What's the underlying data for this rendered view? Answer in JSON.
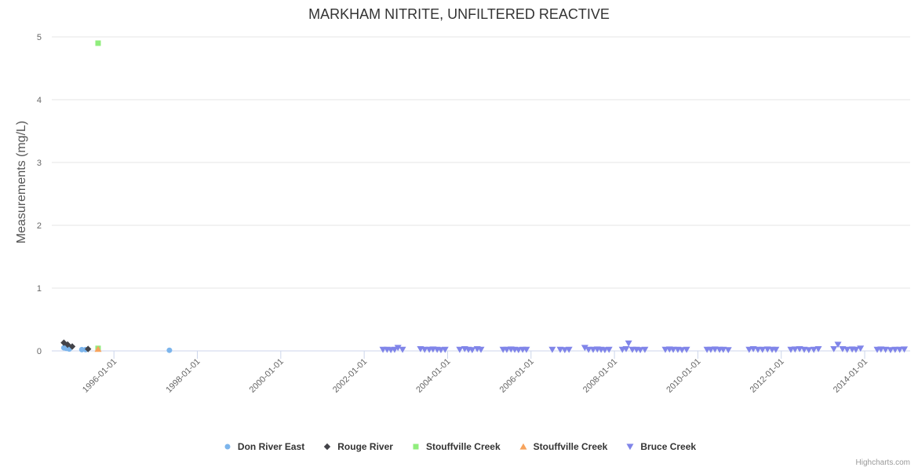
{
  "credits_label": "Highcharts.com",
  "chart_data": {
    "type": "scatter",
    "title": "MARKHAM NITRITE, UNFILTERED REACTIVE",
    "xlabel": "",
    "ylabel": "Measurements (mg/L)",
    "ylim": [
      0,
      5
    ],
    "xlim_years": [
      1994.51,
      2015.09
    ],
    "grid": true,
    "legend_position": "bottom",
    "y_ticks": [
      0,
      1,
      2,
      3,
      4,
      5
    ],
    "x_ticks": [
      {
        "year": 1996,
        "label": "1996-01-01"
      },
      {
        "year": 1998,
        "label": "1998-01-01"
      },
      {
        "year": 2000,
        "label": "2000-01-01"
      },
      {
        "year": 2002,
        "label": "2002-01-01"
      },
      {
        "year": 2004,
        "label": "2004-01-01"
      },
      {
        "year": 2006,
        "label": "2006-01-01"
      },
      {
        "year": 2008,
        "label": "2008-01-01"
      },
      {
        "year": 2010,
        "label": "2010-01-01"
      },
      {
        "year": 2012,
        "label": "2012-01-01"
      },
      {
        "year": 2014,
        "label": "2014-01-01"
      }
    ],
    "series": [
      {
        "name": "Don River East",
        "marker": "circle",
        "color": "#7cb5ec",
        "points": [
          [
            1994.8,
            0.05
          ],
          [
            1994.86,
            0.04
          ],
          [
            1994.93,
            0.03
          ],
          [
            1995.23,
            0.02
          ],
          [
            1995.32,
            0.02
          ],
          [
            1997.33,
            0.01
          ]
        ]
      },
      {
        "name": "Rouge River",
        "marker": "diamond",
        "color": "#434348",
        "points": [
          [
            1994.8,
            0.13
          ],
          [
            1994.89,
            0.1
          ],
          [
            1995.0,
            0.07
          ],
          [
            1995.38,
            0.03
          ]
        ]
      },
      {
        "name": "Stouffville Creek",
        "marker": "square",
        "color": "#90ed7d",
        "points": [
          [
            1995.62,
            4.9
          ],
          [
            1995.62,
            0.04
          ]
        ]
      },
      {
        "name": "Stouffville Creek",
        "marker": "triangle-up",
        "color": "#f7a35c",
        "points": [
          [
            1995.62,
            0.03
          ]
        ]
      },
      {
        "name": "Bruce Creek",
        "marker": "triangle-down",
        "color": "#8085e9",
        "points": [
          [
            2002.45,
            0.02
          ],
          [
            2002.55,
            0.02
          ],
          [
            2002.64,
            0.015
          ],
          [
            2002.73,
            0.02
          ],
          [
            2002.81,
            0.05
          ],
          [
            2002.92,
            0.02
          ],
          [
            2003.35,
            0.03
          ],
          [
            2003.45,
            0.02
          ],
          [
            2003.56,
            0.02
          ],
          [
            2003.65,
            0.025
          ],
          [
            2003.75,
            0.02
          ],
          [
            2003.84,
            0.015
          ],
          [
            2003.94,
            0.02
          ],
          [
            2004.29,
            0.02
          ],
          [
            2004.41,
            0.03
          ],
          [
            2004.5,
            0.02
          ],
          [
            2004.59,
            0.015
          ],
          [
            2004.71,
            0.03
          ],
          [
            2004.8,
            0.02
          ],
          [
            2005.33,
            0.02
          ],
          [
            2005.42,
            0.02
          ],
          [
            2005.52,
            0.025
          ],
          [
            2005.61,
            0.02
          ],
          [
            2005.7,
            0.015
          ],
          [
            2005.8,
            0.02
          ],
          [
            2005.89,
            0.02
          ],
          [
            2006.51,
            0.02
          ],
          [
            2006.7,
            0.02
          ],
          [
            2006.81,
            0.015
          ],
          [
            2006.91,
            0.02
          ],
          [
            2007.29,
            0.05
          ],
          [
            2007.38,
            0.02
          ],
          [
            2007.49,
            0.02
          ],
          [
            2007.59,
            0.025
          ],
          [
            2007.68,
            0.02
          ],
          [
            2007.77,
            0.015
          ],
          [
            2007.87,
            0.02
          ],
          [
            2008.19,
            0.02
          ],
          [
            2008.28,
            0.03
          ],
          [
            2008.34,
            0.12
          ],
          [
            2008.43,
            0.02
          ],
          [
            2008.53,
            0.02
          ],
          [
            2008.62,
            0.015
          ],
          [
            2008.73,
            0.02
          ],
          [
            2009.22,
            0.02
          ],
          [
            2009.32,
            0.025
          ],
          [
            2009.41,
            0.02
          ],
          [
            2009.52,
            0.02
          ],
          [
            2009.62,
            0.015
          ],
          [
            2009.73,
            0.02
          ],
          [
            2010.22,
            0.02
          ],
          [
            2010.31,
            0.02
          ],
          [
            2010.41,
            0.025
          ],
          [
            2010.52,
            0.02
          ],
          [
            2010.61,
            0.02
          ],
          [
            2010.73,
            0.015
          ],
          [
            2011.23,
            0.02
          ],
          [
            2011.33,
            0.03
          ],
          [
            2011.44,
            0.02
          ],
          [
            2011.55,
            0.02
          ],
          [
            2011.67,
            0.025
          ],
          [
            2011.78,
            0.02
          ],
          [
            2011.87,
            0.02
          ],
          [
            2012.23,
            0.02
          ],
          [
            2012.33,
            0.025
          ],
          [
            2012.44,
            0.03
          ],
          [
            2012.55,
            0.02
          ],
          [
            2012.66,
            0.015
          ],
          [
            2012.78,
            0.02
          ],
          [
            2012.89,
            0.03
          ],
          [
            2013.26,
            0.03
          ],
          [
            2013.36,
            0.1
          ],
          [
            2013.47,
            0.03
          ],
          [
            2013.58,
            0.02
          ],
          [
            2013.7,
            0.025
          ],
          [
            2013.79,
            0.02
          ],
          [
            2013.9,
            0.04
          ],
          [
            2014.3,
            0.02
          ],
          [
            2014.39,
            0.025
          ],
          [
            2014.5,
            0.02
          ],
          [
            2014.62,
            0.015
          ],
          [
            2014.73,
            0.02
          ],
          [
            2014.84,
            0.02
          ],
          [
            2014.95,
            0.025
          ]
        ]
      }
    ],
    "style": {
      "grid_color": "#e6e6e6",
      "axis_line_color": "#ccd6eb",
      "title_color": "#333333",
      "tick_label_color": "#666666",
      "legend_text_color": "#333333",
      "credits_color": "#999999"
    }
  }
}
